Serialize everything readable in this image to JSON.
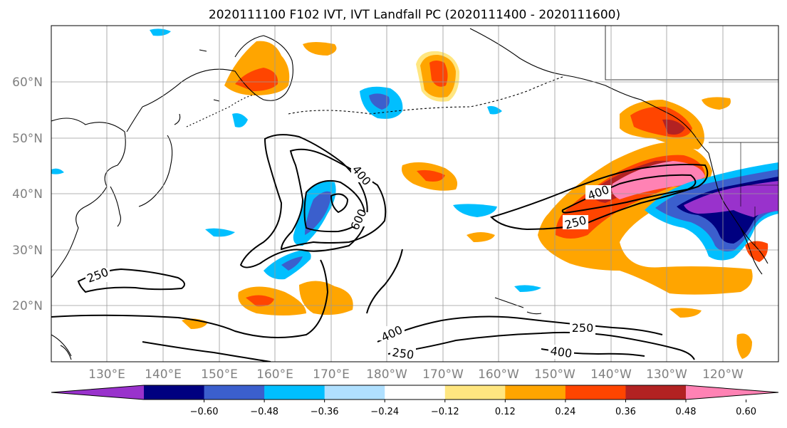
{
  "title": "2020111100 F102 IVT, IVT Landfall PC (2020111400 - 2020111600)",
  "lat_labels": [
    "60°N",
    "50°N",
    "40°N",
    "30°N",
    "20°N"
  ],
  "lon_labels": [
    "130°E",
    "140°E",
    "150°E",
    "160°E",
    "170°E",
    "180°W",
    "170°W",
    "160°W",
    "150°W",
    "140°W",
    "130°W",
    "120°W"
  ],
  "colorbar": {
    "levels": [
      -0.72,
      -0.6,
      -0.48,
      -0.36,
      -0.24,
      -0.12,
      0.12,
      0.24,
      0.36,
      0.48,
      0.6,
      0.72
    ],
    "tick_labels": [
      "−0.60",
      "−0.48",
      "−0.36",
      "−0.24",
      "−0.12",
      "0.12",
      "0.24",
      "0.36",
      "0.48",
      "0.60"
    ],
    "colors": [
      "#9932cc",
      "#000080",
      "#3b5fcd",
      "#00bfff",
      "#b0e0ff",
      "#ffffff",
      "#ffe680",
      "#ffa500",
      "#ff4500",
      "#b22222",
      "#ff82b4"
    ],
    "extend": "both"
  },
  "contour_labels": [
    "400",
    "600",
    "250",
    "250",
    "400",
    "250",
    "400",
    "250",
    "400"
  ],
  "colors": {
    "land_outline": "#000000",
    "grid": "#9a9a9a",
    "ivt_contour": "#000000"
  }
}
